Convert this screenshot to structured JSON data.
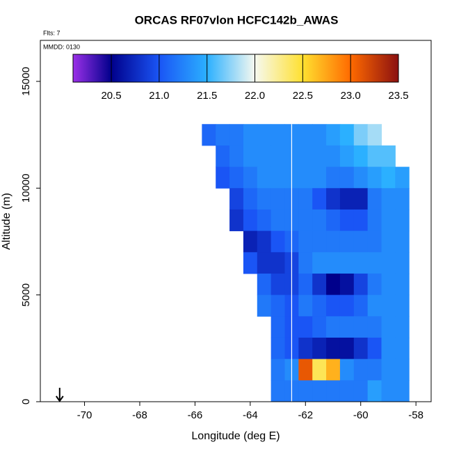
{
  "chart_data": {
    "type": "heatmap",
    "title": "ORCAS RF07vlon HCFC142b_AWAS",
    "flights_note": "Flts: 7",
    "date_note": "MMDD: 0130",
    "xlabel": "Longitude (deg E)",
    "ylabel": "Altitude (m)",
    "xlim": [
      -71.6,
      -57.45
    ],
    "ylim": [
      0,
      16920
    ],
    "xticks": [
      -70,
      -68,
      -66,
      -64,
      -62,
      -60,
      -58
    ],
    "yticks": [
      0,
      5000,
      10000,
      15000
    ],
    "x": [
      -65.5,
      -65,
      -64.5,
      -64,
      -63.5,
      -63,
      -62.5,
      -62,
      -61.5,
      -61,
      -60.5,
      -60,
      -59.5,
      -59,
      -58.5
    ],
    "y": [
      12500,
      11500,
      10500,
      9500,
      8500,
      7500,
      6500,
      5500,
      4500,
      3500,
      2500,
      1500,
      500
    ],
    "cell_width": 0.5,
    "cell_height": 1000,
    "z": [
      [
        21.1,
        21.2,
        21.2,
        21.3,
        21.3,
        21.3,
        21.3,
        21.3,
        21.3,
        21.4,
        21.5,
        21.7,
        21.8,
        null,
        null
      ],
      [
        null,
        21.1,
        21.2,
        21.3,
        21.3,
        21.3,
        21.3,
        21.3,
        21.3,
        21.3,
        21.4,
        21.5,
        21.6,
        21.6,
        null
      ],
      [
        null,
        21.0,
        21.1,
        21.2,
        21.3,
        21.3,
        21.3,
        21.3,
        21.3,
        21.2,
        21.2,
        21.3,
        21.4,
        21.5,
        21.4
      ],
      [
        null,
        null,
        20.9,
        21.1,
        21.2,
        21.2,
        21.2,
        21.2,
        21.0,
        20.8,
        20.7,
        20.7,
        21.2,
        21.3,
        21.3
      ],
      [
        null,
        null,
        20.8,
        21.0,
        21.1,
        21.2,
        21.2,
        21.2,
        21.2,
        21.1,
        21.0,
        21.0,
        21.2,
        21.3,
        21.3
      ],
      [
        null,
        null,
        null,
        20.7,
        20.8,
        21.0,
        21.1,
        21.2,
        21.2,
        21.2,
        21.2,
        21.2,
        21.2,
        21.3,
        21.3
      ],
      [
        null,
        null,
        null,
        21.0,
        20.8,
        20.8,
        20.9,
        21.2,
        21.3,
        21.3,
        21.3,
        21.3,
        21.3,
        21.3,
        21.3
      ],
      [
        null,
        null,
        null,
        null,
        21.1,
        20.9,
        20.9,
        21.1,
        20.8,
        20.5,
        20.6,
        20.9,
        21.2,
        21.3,
        21.3
      ],
      [
        null,
        null,
        null,
        null,
        21.2,
        21.1,
        21.0,
        21.2,
        21.1,
        21.0,
        21.0,
        21.1,
        21.3,
        21.3,
        21.3
      ],
      [
        null,
        null,
        null,
        null,
        null,
        21.1,
        21.0,
        21.0,
        21.1,
        21.2,
        21.2,
        21.2,
        21.2,
        21.3,
        21.3
      ],
      [
        null,
        null,
        null,
        null,
        null,
        21.1,
        21.0,
        20.8,
        20.7,
        20.6,
        20.6,
        20.8,
        21.0,
        21.3,
        21.3
      ],
      [
        null,
        null,
        null,
        null,
        null,
        21.2,
        21.3,
        23.1,
        22.4,
        22.7,
        21.3,
        21.2,
        21.2,
        21.3,
        21.3
      ],
      [
        null,
        null,
        null,
        null,
        null,
        21.2,
        21.2,
        21.2,
        21.2,
        21.2,
        21.2,
        21.2,
        21.4,
        21.3,
        21.3
      ]
    ],
    "track_longitude": -62.5,
    "arrow_longitude": -70.9,
    "colorbar": {
      "lim": [
        20.1,
        23.5
      ],
      "stops": [
        20.1,
        20.5,
        21,
        21.5,
        22,
        22.5,
        23,
        23.5
      ],
      "colors": [
        "#9b30e8",
        "#00008b",
        "#1a55f5",
        "#2bb0ff",
        "#f6f9f0",
        "#ffe030",
        "#ff6a00",
        "#8b1010"
      ],
      "ticks": [
        20.5,
        {
          "value": 21,
          "label": "21.0"
        },
        21.5,
        {
          "value": 22,
          "label": "22.0"
        },
        22.5,
        {
          "value": 23,
          "label": "23.0"
        },
        23.5
      ]
    }
  }
}
